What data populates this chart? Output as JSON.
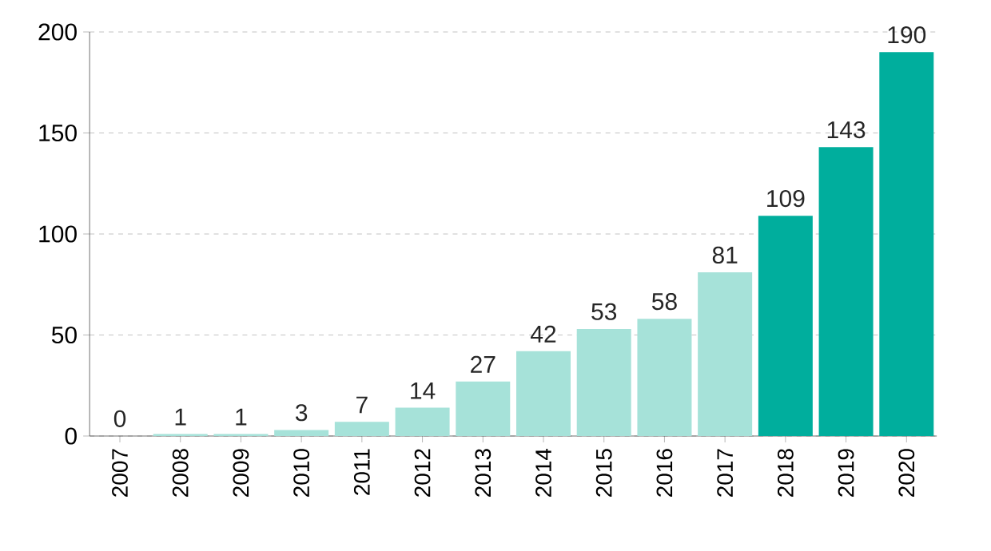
{
  "chart_data": {
    "type": "bar",
    "categories": [
      "2007",
      "2008",
      "2009",
      "2010",
      "2011",
      "2012",
      "2013",
      "2014",
      "2015",
      "2016",
      "2017",
      "2018",
      "2019",
      "2020"
    ],
    "values": [
      0,
      1,
      1,
      3,
      7,
      14,
      27,
      42,
      53,
      58,
      81,
      109,
      143,
      190
    ],
    "colors": [
      "#a6e2d9",
      "#a6e2d9",
      "#a6e2d9",
      "#a6e2d9",
      "#a6e2d9",
      "#a6e2d9",
      "#a6e2d9",
      "#a6e2d9",
      "#a6e2d9",
      "#a6e2d9",
      "#a6e2d9",
      "#00ae9d",
      "#00ae9d",
      "#00ae9d"
    ],
    "ylim": [
      0,
      200
    ],
    "yticks": [
      0,
      50,
      100,
      150,
      200
    ],
    "grid": "y",
    "data_labels": true
  }
}
